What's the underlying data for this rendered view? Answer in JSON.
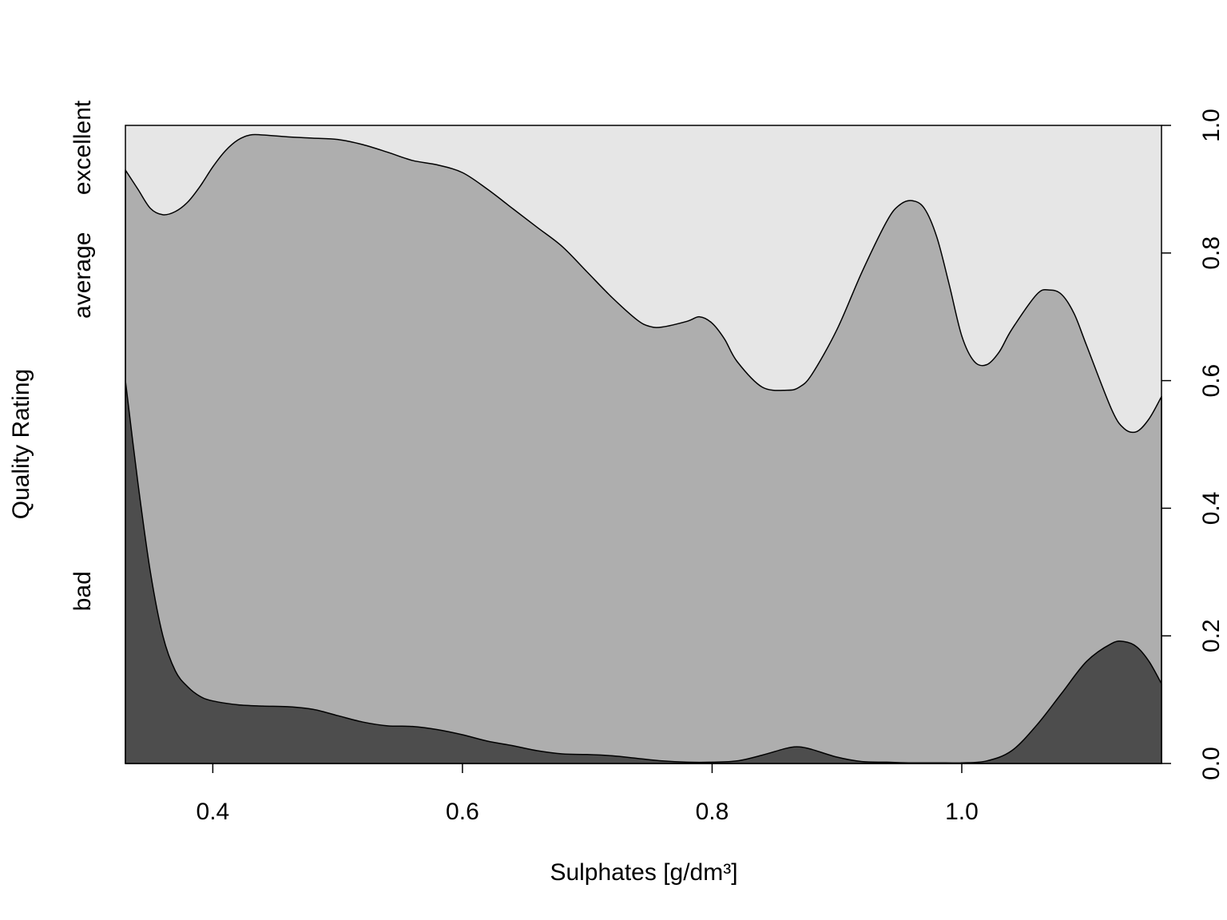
{
  "chart_data": {
    "type": "area",
    "subtype": "conditional-density-stacked",
    "xlabel": "Sulphates [g/dm³]",
    "ylabel": "Quality Rating",
    "xlim": [
      0.33,
      1.16
    ],
    "ylim": [
      0,
      1
    ],
    "x_ticks": [
      0.4,
      0.6,
      0.8,
      1.0
    ],
    "x_tick_labels": [
      "0.4",
      "0.6",
      "0.8",
      "1.0"
    ],
    "y_ticks_right": [
      0.0,
      0.2,
      0.4,
      0.6,
      0.8,
      1.0
    ],
    "y_tick_labels_right": [
      "0.0",
      "0.2",
      "0.4",
      "0.6",
      "0.8",
      "1.0"
    ],
    "categories": [
      "bad",
      "average",
      "excellent"
    ],
    "category_axis_labels": [
      {
        "label": "bad",
        "y": 0.27
      },
      {
        "label": "average",
        "y": 0.765
      },
      {
        "label": "excellent",
        "y": 0.965
      }
    ],
    "colors": {
      "bad": "#4d4d4d",
      "average": "#aeaeae",
      "excellent": "#e6e6e6"
    },
    "boundaries": [
      {
        "name": "bad",
        "x": [
          0.33,
          0.34,
          0.35,
          0.36,
          0.37,
          0.38,
          0.39,
          0.4,
          0.42,
          0.44,
          0.46,
          0.48,
          0.5,
          0.52,
          0.54,
          0.56,
          0.58,
          0.6,
          0.62,
          0.64,
          0.66,
          0.68,
          0.7,
          0.72,
          0.74,
          0.76,
          0.78,
          0.8,
          0.82,
          0.84,
          0.86,
          0.87,
          0.88,
          0.9,
          0.92,
          0.94,
          0.96,
          0.98,
          1.0,
          1.02,
          1.04,
          1.06,
          1.08,
          1.1,
          1.12,
          1.13,
          1.14,
          1.15,
          1.16
        ],
        "y": [
          0.6,
          0.44,
          0.3,
          0.2,
          0.145,
          0.12,
          0.105,
          0.098,
          0.092,
          0.09,
          0.089,
          0.085,
          0.075,
          0.065,
          0.059,
          0.058,
          0.053,
          0.045,
          0.035,
          0.028,
          0.02,
          0.015,
          0.014,
          0.012,
          0.008,
          0.004,
          0.002,
          0.002,
          0.004,
          0.013,
          0.024,
          0.026,
          0.022,
          0.01,
          0.003,
          0.002,
          0.001,
          0.001,
          0.001,
          0.004,
          0.02,
          0.06,
          0.11,
          0.16,
          0.188,
          0.191,
          0.183,
          0.16,
          0.125
        ]
      },
      {
        "name": "average",
        "x": [
          0.33,
          0.34,
          0.35,
          0.36,
          0.37,
          0.38,
          0.39,
          0.4,
          0.41,
          0.42,
          0.43,
          0.44,
          0.46,
          0.48,
          0.5,
          0.52,
          0.54,
          0.56,
          0.58,
          0.6,
          0.62,
          0.64,
          0.66,
          0.68,
          0.7,
          0.72,
          0.74,
          0.75,
          0.76,
          0.78,
          0.79,
          0.8,
          0.81,
          0.82,
          0.84,
          0.86,
          0.87,
          0.88,
          0.9,
          0.92,
          0.94,
          0.95,
          0.96,
          0.97,
          0.98,
          0.99,
          1.0,
          1.01,
          1.02,
          1.03,
          1.04,
          1.06,
          1.07,
          1.08,
          1.09,
          1.1,
          1.12,
          1.13,
          1.14,
          1.15,
          1.16
        ],
        "y": [
          0.93,
          0.9,
          0.87,
          0.86,
          0.865,
          0.88,
          0.905,
          0.935,
          0.96,
          0.977,
          0.985,
          0.985,
          0.982,
          0.98,
          0.978,
          0.97,
          0.958,
          0.945,
          0.938,
          0.926,
          0.9,
          0.87,
          0.84,
          0.81,
          0.77,
          0.73,
          0.695,
          0.685,
          0.684,
          0.693,
          0.7,
          0.69,
          0.665,
          0.63,
          0.59,
          0.585,
          0.59,
          0.61,
          0.68,
          0.77,
          0.85,
          0.875,
          0.882,
          0.87,
          0.825,
          0.75,
          0.67,
          0.63,
          0.625,
          0.645,
          0.68,
          0.735,
          0.742,
          0.735,
          0.705,
          0.655,
          0.555,
          0.525,
          0.52,
          0.54,
          0.575
        ]
      }
    ]
  }
}
